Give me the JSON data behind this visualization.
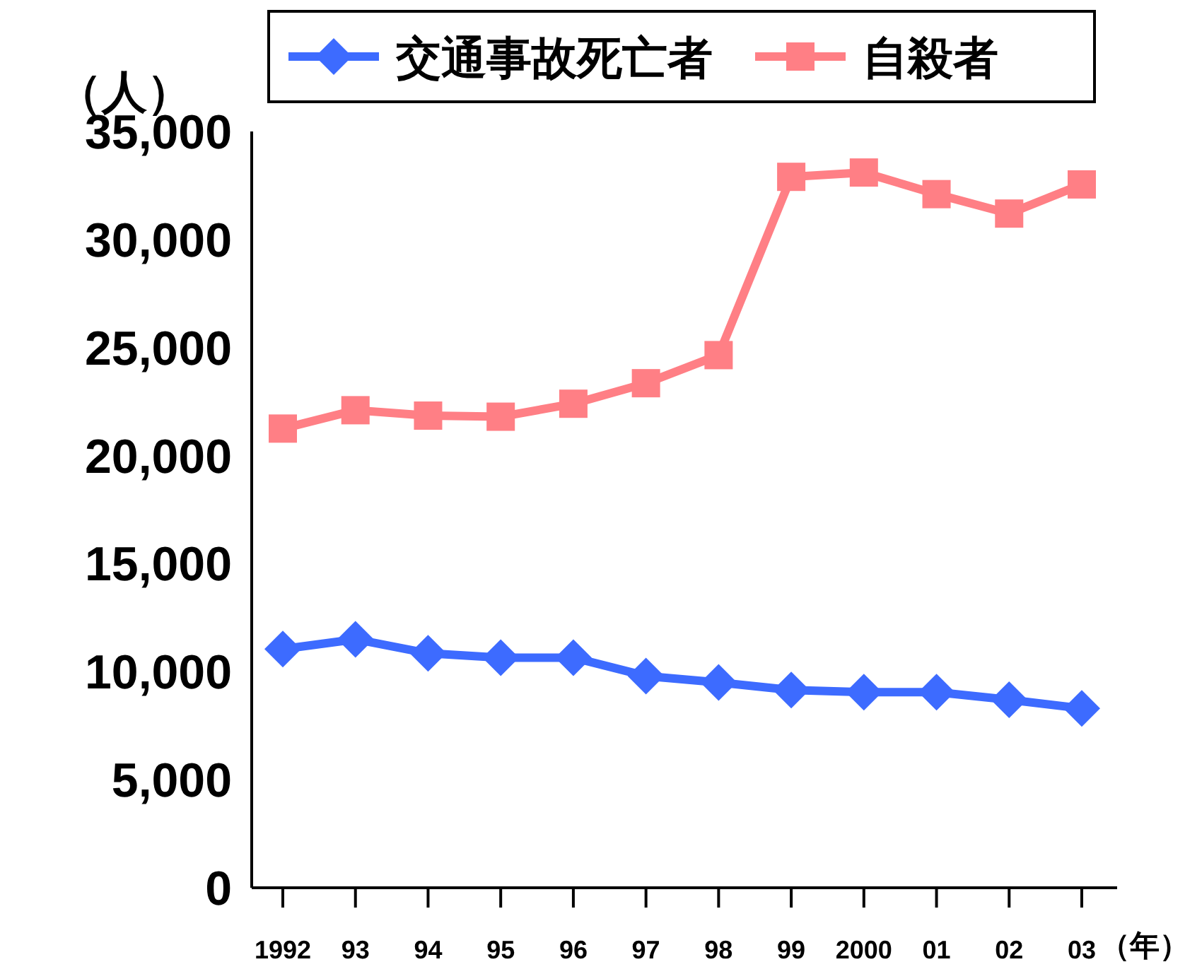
{
  "chart_data": {
    "type": "line",
    "ylabel": "（人）",
    "xlabel": "（年）",
    "categories": [
      "1992",
      "93",
      "94",
      "95",
      "96",
      "97",
      "98",
      "99",
      "2000",
      "01",
      "02",
      "03"
    ],
    "ylim": [
      0,
      35000
    ],
    "yticks": [
      0,
      {
        "value": 5000,
        "label": "5,000"
      },
      {
        "value": 10000,
        "label": "10,000"
      },
      {
        "value": 15000,
        "label": "15,000"
      },
      {
        "value": 20000,
        "label": "20,000"
      },
      {
        "value": 25000,
        "label": "25,000"
      },
      {
        "value": 30000,
        "label": "30,000"
      },
      {
        "value": 35000,
        "label": "35,000"
      }
    ],
    "grid": false,
    "legend": "top",
    "line_style": "solid",
    "series": [
      {
        "name": "交通事故死亡者",
        "color": "#3d6bff",
        "marker": "diamond",
        "values": [
          11050,
          11500,
          10850,
          10650,
          10650,
          9800,
          9500,
          9150,
          9050,
          9050,
          8700,
          8300
        ]
      },
      {
        "name": "自殺者",
        "color": "#ff7f85",
        "marker": "square",
        "values": [
          21250,
          22100,
          21850,
          21800,
          22400,
          23350,
          24650,
          32900,
          33100,
          32100,
          31200,
          32550
        ]
      }
    ]
  }
}
